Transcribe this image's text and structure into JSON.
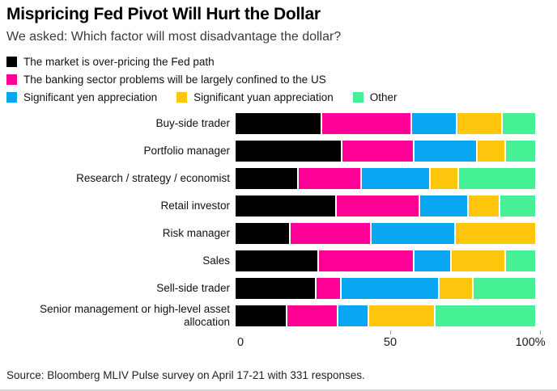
{
  "header": {
    "title": "Mispricing Fed Pivot Will Hurt the Dollar",
    "subtitle": "We asked: Which factor will most disadvantage the dollar?"
  },
  "chart_data": {
    "type": "bar",
    "orientation": "horizontal",
    "stacked": true,
    "unit": "percent",
    "title": "Mispricing Fed Pivot Will Hurt the Dollar",
    "xlabel": "",
    "ylabel": "",
    "xlim": [
      0,
      100
    ],
    "x_ticks": [
      "0",
      "50",
      "100%"
    ],
    "grid": false,
    "legend_position": "top",
    "legend_rows": [
      [
        0
      ],
      [
        1
      ],
      [
        2,
        3,
        4
      ]
    ],
    "categories": [
      "Buy-side trader",
      "Portfolio manager",
      "Research / strategy / economist",
      "Retail investor",
      "Risk manager",
      "Sales",
      "Sell-side trader",
      "Senior management or high-level asset allocation"
    ],
    "series": [
      {
        "name": "The market is over-pricing the Fed path",
        "color": "#000000",
        "values": [
          29,
          36,
          21,
          34,
          18,
          28,
          27,
          17
        ]
      },
      {
        "name": "The banking sector problems will be largely confined to the US",
        "color": "#ff0096",
        "values": [
          30,
          24,
          21,
          28,
          27,
          32,
          8,
          17
        ]
      },
      {
        "name": "Significant yen appreciation",
        "color": "#09a7f2",
        "values": [
          15,
          21,
          23,
          16,
          28,
          12,
          33,
          10
        ]
      },
      {
        "name": "Significant yuan appreciation",
        "color": "#fdc60d",
        "values": [
          15,
          9,
          9,
          10,
          27,
          18,
          11,
          22
        ]
      },
      {
        "name": "Other",
        "color": "#46f095",
        "values": [
          11,
          10,
          26,
          12,
          0,
          10,
          21,
          34
        ]
      }
    ]
  },
  "axis": {
    "tick_0": "0",
    "tick_50": "50",
    "tick_100": "100%"
  },
  "footer": {
    "source": "Source: Bloomberg MLIV Pulse survey on April 17-21 with 331 responses."
  }
}
